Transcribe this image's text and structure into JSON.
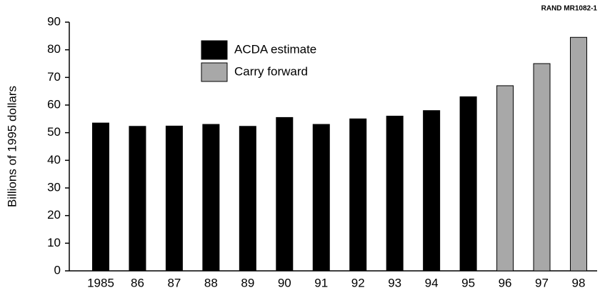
{
  "chart_data": {
    "type": "bar",
    "note": "RAND MR1082-1",
    "y_label": "Billions of 1995 dollars",
    "categories": [
      "1985",
      "86",
      "87",
      "88",
      "89",
      "90",
      "91",
      "92",
      "93",
      "94",
      "95",
      "96",
      "97",
      "98"
    ],
    "series": [
      {
        "name": "ACDA estimate",
        "color": "#000000",
        "values": [
          53.5,
          52.3,
          52.4,
          53,
          52.3,
          55.5,
          53,
          55,
          56,
          58,
          63,
          null,
          null,
          null
        ]
      },
      {
        "name": "Carry forward",
        "color": "#a8a8a8",
        "values": [
          null,
          null,
          null,
          null,
          null,
          null,
          null,
          null,
          null,
          null,
          null,
          67,
          75,
          84.5
        ]
      }
    ],
    "ylim": [
      0,
      90
    ],
    "yticks": [
      0,
      10,
      20,
      30,
      40,
      50,
      60,
      70,
      80,
      90
    ],
    "grid": false
  }
}
